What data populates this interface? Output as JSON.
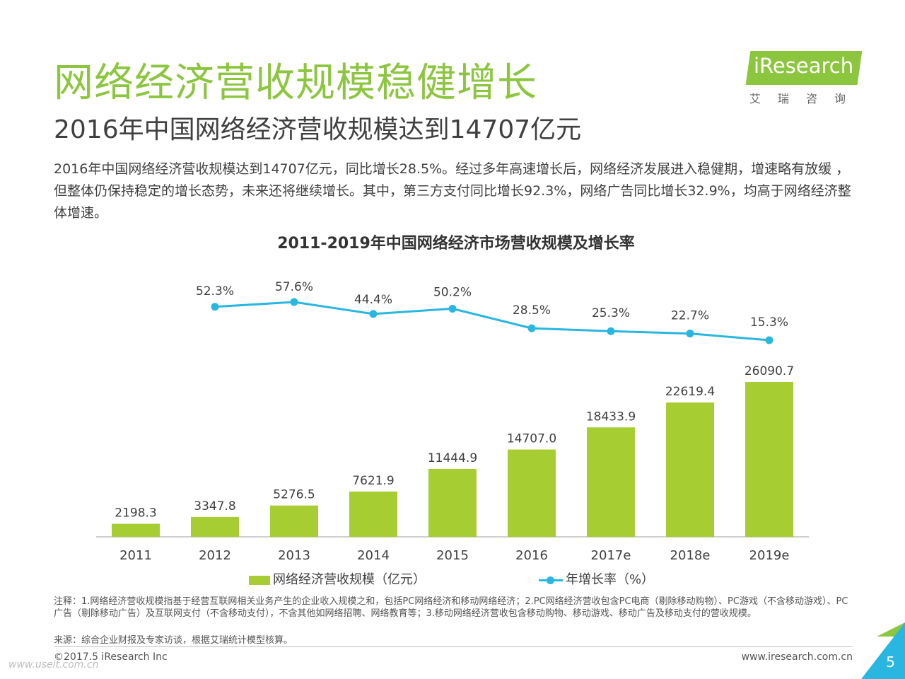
{
  "slide": {
    "title": "网络经济营收规模稳健增长",
    "subtitle": "2016年中国网络经济营收规模达到14707亿元",
    "body": "2016年中国网络经济营收规模达到14707亿元，同比增长28.5%。经过多年高速增长后，网络经济发展进入稳健期，增速略有放缓 ，但整体仍保持稳定的增长态势，未来还将继续增长。其中，第三方支付同比增长92.3%，网络广告同比增长32.9%，均高于网络经济整体增速。",
    "note": "注释：1.网络经济营收规模指基于经营互联网相关业务产生的企业收入规模之和，包括PC网络经济和移动网络经济；2.PC网络经济营收包含PC电商（剔除移动购物）、PC游戏（不含移动游戏）、PC广告（剔除移动广告）及互联网支付（不含移动支付），不含其他如网络招聘、网络教育等；3.移动网络经济营收包含移动购物、移动游戏、移动广告及移动支付的营收规模。",
    "source": "来源：综合企业财报及专家访谈，根据艾瑞统计模型核算。",
    "copyright": "©2017.5 iResearch Inc",
    "website": "www.iresearch.com.cn",
    "page_number": "5",
    "watermark": "www.useit.com.cn"
  },
  "logo": {
    "name": "iResearch",
    "sub": "艾瑞咨询"
  },
  "colors": {
    "accent_green": "#8cc63f",
    "bar_green": "#a6cd31",
    "line_blue": "#29b6e0",
    "text": "#404040"
  },
  "chart_data": {
    "type": "bar",
    "title": "2011-2019年中国网络经济市场营收规模及增长率",
    "categories": [
      "2011",
      "2012",
      "2013",
      "2014",
      "2015",
      "2016",
      "2017e",
      "2018e",
      "2019e"
    ],
    "series": [
      {
        "name": "网络经济营收规模（亿元）",
        "type": "bar",
        "values": [
          2198.3,
          3347.8,
          5276.5,
          7621.9,
          11444.9,
          14707.0,
          18433.9,
          22619.4,
          26090.7
        ],
        "labels": [
          "2198.3",
          "3347.8",
          "5276.5",
          "7621.9",
          "11444.9",
          "14707.0",
          "18433.9",
          "22619.4",
          "26090.7"
        ]
      },
      {
        "name": "年增长率（%）",
        "type": "line",
        "values": [
          null,
          52.3,
          57.6,
          44.4,
          50.2,
          28.5,
          25.3,
          22.7,
          15.3
        ],
        "labels": [
          "",
          "52.3%",
          "57.6%",
          "44.4%",
          "50.2%",
          "28.5%",
          "25.3%",
          "22.7%",
          "15.3%"
        ]
      }
    ],
    "legend_position": "bottom",
    "grid": false
  }
}
